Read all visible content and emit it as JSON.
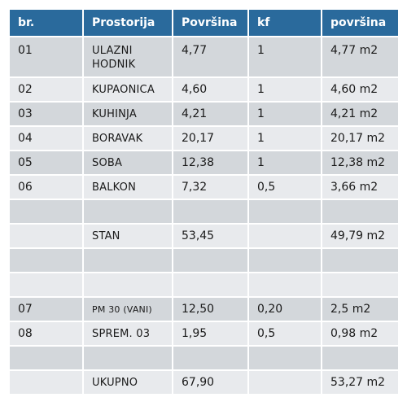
{
  "table": {
    "headers": [
      "br.",
      "Prostorija",
      "Površina",
      "kf",
      "površina"
    ],
    "rows": [
      {
        "br": "01",
        "prostorija": "ULAZNI HODNIK",
        "povrsina": "4,77",
        "kf": "1",
        "povrsina2": "4,77 m2",
        "shade": "dark",
        "tall": true
      },
      {
        "br": "02",
        "prostorija": "KUPAONICA",
        "povrsina": "4,60",
        "kf": "1",
        "povrsina2": "4,60 m2",
        "shade": "light"
      },
      {
        "br": "03",
        "prostorija": "KUHINJA",
        "povrsina": "4,21",
        "kf": "1",
        "povrsina2": "4,21 m2",
        "shade": "dark"
      },
      {
        "br": "04",
        "prostorija": "BORAVAK",
        "povrsina": "20,17",
        "kf": "1",
        "povrsina2": "20,17 m2",
        "shade": "light"
      },
      {
        "br": "05",
        "prostorija": "SOBA",
        "povrsina": "12,38",
        "kf": "1",
        "povrsina2": "12,38 m2",
        "shade": "dark"
      },
      {
        "br": "06",
        "prostorija": "BALKON",
        "povrsina": "7,32",
        "kf": "0,5",
        "povrsina2": "3,66 m2",
        "shade": "light"
      },
      {
        "br": "",
        "prostorija": "",
        "povrsina": "",
        "kf": "",
        "povrsina2": "",
        "shade": "dark"
      },
      {
        "br": "",
        "prostorija": "STAN",
        "povrsina": "53,45",
        "kf": "",
        "povrsina2": "49,79 m2",
        "shade": "light"
      },
      {
        "br": "",
        "prostorija": "",
        "povrsina": "",
        "kf": "",
        "povrsina2": "",
        "shade": "dark"
      },
      {
        "br": "",
        "prostorija": "",
        "povrsina": "",
        "kf": "",
        "povrsina2": "",
        "shade": "light"
      },
      {
        "br": "07",
        "prostorija": "PM 30 (VANI)",
        "povrsina": "12,50",
        "kf": "0,20",
        "povrsina2": "2,5 m2",
        "shade": "dark",
        "small": true
      },
      {
        "br": "08",
        "prostorija": "SPREM. 03",
        "povrsina": "1,95",
        "kf": "0,5",
        "povrsina2": "0,98 m2",
        "shade": "light"
      },
      {
        "br": "",
        "prostorija": "",
        "povrsina": "",
        "kf": "",
        "povrsina2": "",
        "shade": "dark"
      },
      {
        "br": "",
        "prostorija": "UKUPNO",
        "povrsina": "67,90",
        "kf": "",
        "povrsina2": "53,27 m2",
        "shade": "light"
      }
    ]
  }
}
